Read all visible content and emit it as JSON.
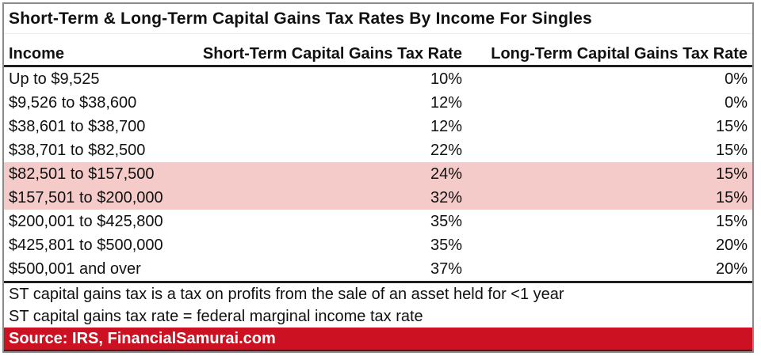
{
  "chart_data": {
    "type": "table",
    "title": "Short-Term & Long-Term Capital Gains Tax Rates By Income For Singles",
    "columns": [
      "Income",
      "Short-Term Capital Gains Tax Rate",
      "Long-Term Capital Gains Tax Rate"
    ],
    "rows": [
      [
        "Up to $9,525",
        "10%",
        "0%"
      ],
      [
        "$9,526 to $38,600",
        "12%",
        "0%"
      ],
      [
        "$38,601 to $38,700",
        "12%",
        "15%"
      ],
      [
        "$38,701 to $82,500",
        "22%",
        "15%"
      ],
      [
        "$82,501 to $157,500",
        "24%",
        "15%"
      ],
      [
        "$157,501 to $200,000",
        "32%",
        "15%"
      ],
      [
        "$200,001 to $425,800",
        "35%",
        "15%"
      ],
      [
        "$425,801 to $500,000",
        "35%",
        "20%"
      ],
      [
        "$500,001 and over",
        "37%",
        "20%"
      ]
    ],
    "highlighted_rows": [
      4,
      5
    ],
    "notes": [
      "ST capital gains tax is a tax on profits from the sale of an asset held for <1 year",
      "ST capital gains tax rate = federal marginal income tax rate"
    ],
    "source": "Source: IRS, FinancialSamurai.com",
    "legend_position": "none",
    "grid": false
  },
  "colors": {
    "highlight": "#f4cbc8",
    "source_bar": "#cc1122",
    "header_border": "#1f1f1f",
    "outer_border": "#8a8a8a"
  }
}
